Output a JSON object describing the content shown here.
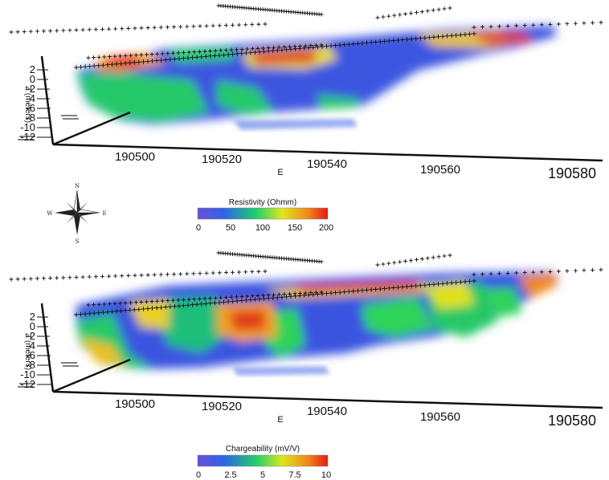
{
  "chart_data": [
    {
      "type": "heatmap",
      "title": "",
      "property": "Resistivity",
      "xlabel": "E",
      "ylabel": "Z (meters)",
      "x_ticks": [
        190500,
        190520,
        190540,
        190560,
        190580
      ],
      "z_ticks": [
        2,
        0,
        -2,
        -4,
        -6,
        -8,
        -10,
        -12
      ],
      "colorbar": {
        "title": "Resistivity (Ohmm)",
        "ticks": [
          0,
          50,
          100,
          150,
          200
        ],
        "range": [
          0,
          200
        ],
        "colors": [
          "#5a3fd6",
          "#2f6fe8",
          "#19c96b",
          "#e8e81f",
          "#f08a1a",
          "#e32020"
        ]
      }
    },
    {
      "type": "heatmap",
      "title": "",
      "property": "Chargeability",
      "xlabel": "E",
      "ylabel": "Z (meters)",
      "x_ticks": [
        190500,
        190520,
        190540,
        190560,
        190580
      ],
      "z_ticks": [
        2,
        0,
        -2,
        -4,
        -6,
        -8,
        -10,
        -12
      ],
      "colorbar": {
        "title": "Chargeability (mV/V)",
        "ticks": [
          0,
          2.5,
          5,
          7.5,
          10
        ],
        "range": [
          0,
          10
        ],
        "colors": [
          "#5a3fd6",
          "#2f6fe8",
          "#19c96b",
          "#e8e81f",
          "#f08a1a",
          "#e32020"
        ]
      }
    }
  ],
  "compass": {
    "n": "N",
    "s": "S",
    "e": "E",
    "w": "W"
  },
  "colors": {
    "low": "#2f4fe0",
    "mid": "#2fd35a",
    "high": "#f0e020",
    "peak": "#e02a1a"
  }
}
